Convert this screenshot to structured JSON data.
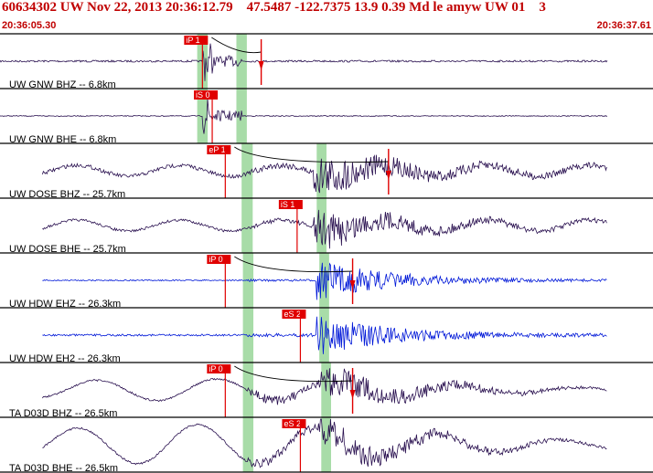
{
  "header": {
    "title": "60634302 UW Nov 22, 2013 20:36:12.79    47.5487 -122.7375 13.9 0.39 Md le amyw UW 01    3",
    "start_time": "20:36:05.30",
    "end_time": "20:36:37.61"
  },
  "colors": {
    "header": "#c00000",
    "trace_default": "#2a1150",
    "trace_hdw": "#0018d8",
    "pick_flag": "#e00000",
    "window": "#a8dca8"
  },
  "channels": [
    {
      "label": "UW GNW BHZ -- 6.8km",
      "color": "#2a1150",
      "amp": 3,
      "pick": "iP 1",
      "pick_at": 0.31,
      "signal": 0.31,
      "s": 0.37,
      "env": "impulse",
      "marker": 0.4,
      "curve": true
    },
    {
      "label": "UW GNW BHE -- 6.8km",
      "color": "#2a1150",
      "amp": 1.5,
      "pick": "iS 0",
      "pick_at": 0.325,
      "signal": 0.31,
      "s": 0.37,
      "env": "impulse",
      "marker": null,
      "curve": false
    },
    {
      "label": "UW DOSE BHZ -- 25.7km",
      "color": "#2a1150",
      "amp": 6,
      "pick": "eP 1",
      "pick_at": 0.345,
      "signal": 0.38,
      "s": 0.49,
      "env": "event",
      "marker": 0.595,
      "curve": true
    },
    {
      "label": "UW DOSE BHE -- 25.7km",
      "color": "#2a1150",
      "amp": 4,
      "pick": "iS 1",
      "pick_at": 0.455,
      "signal": 0.38,
      "s": 0.49,
      "env": "event",
      "marker": null,
      "curve": false
    },
    {
      "label": "UW HDW EHZ -- 26.3km",
      "color": "#0018d8",
      "amp": 2,
      "pick": "iP 0",
      "pick_at": 0.345,
      "signal": 0.38,
      "s": 0.495,
      "env": "event",
      "marker": 0.54,
      "curve": true
    },
    {
      "label": "UW HDW EH2 -- 26.3km",
      "color": "#0018d8",
      "amp": 3,
      "pick": "eS 2",
      "pick_at": 0.46,
      "signal": 0.38,
      "s": 0.495,
      "env": "event",
      "marker": null,
      "curve": false
    },
    {
      "label": "TA D03D BHZ -- 26.5km",
      "color": "#2a1150",
      "amp": 12,
      "pick": "iP 0",
      "pick_at": 0.345,
      "signal": 0.38,
      "s": 0.5,
      "env": "swell",
      "marker": 0.54,
      "curve": true
    },
    {
      "label": "TA D03D BHE -- 26.5km",
      "color": "#2a1150",
      "amp": 22,
      "pick": "eS 2",
      "pick_at": 0.46,
      "signal": 0.38,
      "s": 0.5,
      "env": "swell",
      "marker": null,
      "curve": false
    }
  ],
  "windows": [
    {
      "station": "GNW",
      "from": 0.302,
      "to": 0.318
    },
    {
      "station": "GNW",
      "from": 0.362,
      "to": 0.378
    },
    {
      "station": "DOSE",
      "from": 0.37,
      "to": 0.387
    },
    {
      "station": "DOSE",
      "from": 0.485,
      "to": 0.5
    },
    {
      "station": "HDW",
      "from": 0.372,
      "to": 0.388
    },
    {
      "station": "HDW",
      "from": 0.489,
      "to": 0.504
    },
    {
      "station": "D03D",
      "from": 0.372,
      "to": 0.388
    },
    {
      "station": "D03D",
      "from": 0.492,
      "to": 0.507
    }
  ]
}
